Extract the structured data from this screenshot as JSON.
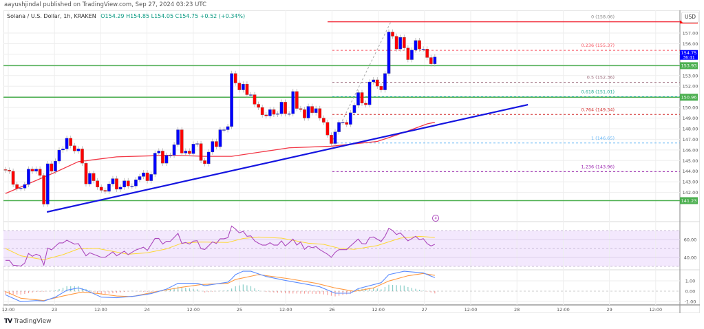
{
  "publish_line": "aayushjindal published on TradingView.com, Sep 27, 2024 03:23 UTC",
  "legend": {
    "symbol": "Solana / U.S. Dollar, 1h, KRAKEN",
    "ohlc": "O154.29 H154.85 L154.05 C154.75 +0.52 (+0.34%)"
  },
  "currency_button": "USD",
  "brand": {
    "logo": "TV",
    "name": "TradingView"
  },
  "colors": {
    "up": "#0000ff",
    "down": "#ff0000",
    "ma": "#f23645",
    "trendline": "#1515e0",
    "support": "#4caf50",
    "rsi": "#ab47bc",
    "rsi_ma": "#fdd835",
    "macd": "#5b8cff",
    "signal": "#ff9940",
    "hist_up": "#26a69a",
    "hist_down": "#ef5350"
  },
  "icons": {
    "event": "lightning-icon"
  },
  "chart_data": [
    {
      "type": "candlestick",
      "title": "Solana / U.S. Dollar, 1h, KRAKEN",
      "ylim": [
        140.5,
        158.9
      ],
      "y_ticks": [
        "157.00",
        "156.00",
        "155.00",
        "154.00",
        "153.00",
        "152.00",
        "151.00",
        "150.00",
        "149.00",
        "148.00",
        "147.00",
        "146.00",
        "145.00",
        "144.00",
        "143.00",
        "142.00"
      ],
      "y_tick_values": [
        157,
        156,
        155,
        154,
        153,
        152,
        151,
        150,
        149,
        148,
        147,
        146,
        145,
        144,
        143,
        142
      ],
      "x_ticks": [
        "12:00",
        "23",
        "12:00",
        "24",
        "12:00",
        "25",
        "12:00",
        "26",
        "12:00",
        "27",
        "12:00",
        "28",
        "12:00",
        "29",
        "12:00"
      ],
      "closes": [
        144.1,
        144.0,
        142.75,
        142.36,
        142.4,
        142.75,
        144.2,
        144.0,
        144.2,
        143.6,
        140.9,
        144.7,
        144.0,
        144.95,
        145.99,
        146.1,
        147.1,
        146.4,
        145.9,
        146.1,
        144.75,
        142.8,
        143.8,
        143.1,
        142.5,
        142.2,
        142.1,
        142.8,
        143.3,
        142.3,
        142.5,
        143.1,
        142.6,
        142.6,
        143.2,
        143.5,
        143.85,
        143.1,
        143.7,
        145.7,
        145.9,
        144.75,
        145.5,
        145.5,
        146.5,
        147.9,
        145.7,
        145.9,
        145.65,
        146.55,
        146.6,
        145.0,
        144.7,
        145.8,
        146.8,
        146.3,
        147.9,
        147.9,
        148.2,
        153.2,
        152.3,
        151.65,
        152.2,
        151.2,
        151.2,
        150.3,
        150.0,
        149.3,
        149.2,
        149.8,
        149.35,
        149.4,
        150.5,
        149.4,
        149.4,
        151.5,
        149.9,
        149.8,
        149.0,
        150.1,
        149.5,
        149.9,
        149.0,
        148.6,
        147.4,
        146.6,
        147.7,
        148.6,
        148.6,
        148.4,
        149.5,
        150.2,
        151.4,
        150.4,
        150.25,
        152.4,
        152.6,
        152.0,
        151.65,
        153.2,
        157.1,
        156.7,
        155.5,
        156.6,
        155.6,
        154.5,
        155.4,
        156.3,
        155.5,
        155.5,
        154.7,
        154.1,
        154.75
      ],
      "moving_average": [
        [
          0,
          141.9
        ],
        [
          13,
          143.9
        ],
        [
          19,
          144.9
        ],
        [
          29,
          145.35
        ],
        [
          43,
          145.5
        ],
        [
          52,
          145.4
        ],
        [
          59,
          145.4
        ],
        [
          74,
          146.2
        ],
        [
          85,
          146.35
        ],
        [
          97,
          146.8
        ],
        [
          102,
          147.4
        ],
        [
          110,
          148.45
        ],
        [
          112,
          148.6
        ]
      ],
      "trendline": [
        [
          10.8,
          140.16
        ],
        [
          136.3,
          150.26
        ]
      ],
      "horizontal_levels": [
        {
          "price": 153.93,
          "label": "153.93"
        },
        {
          "price": 150.96,
          "label": "150.96"
        },
        {
          "price": 141.23,
          "label": "141.23"
        }
      ],
      "last_price": {
        "label": "154.75",
        "countdown": "36:41",
        "value": 154.75
      },
      "fibonacci": {
        "from_index": 85,
        "to_index": 100,
        "levels": [
          {
            "ratio": "0",
            "price": 158.06,
            "label": "0 (158.06)",
            "color": "#f23645",
            "solid": true
          },
          {
            "ratio": "0.236",
            "price": 155.37,
            "label": "0.236 (155.37)",
            "color": "#f7525f"
          },
          {
            "ratio": "0.5",
            "price": 152.36,
            "label": "0.5 (152.36)",
            "color": "#9b6b7b"
          },
          {
            "ratio": "0.618",
            "price": 151.01,
            "label": "0.618 (151.01)",
            "color": "#22ab94"
          },
          {
            "ratio": "0.764",
            "price": 149.34,
            "label": "0.764 (149.34)",
            "color": "#d32f2f"
          },
          {
            "ratio": "1",
            "price": 146.65,
            "label": "1 (146.65)",
            "color": "#64b5f6"
          },
          {
            "ratio": "1.236",
            "price": 143.96,
            "label": "1.236 (143.96)",
            "color": "#9c27b0"
          }
        ]
      }
    },
    {
      "type": "line",
      "title": "RSI",
      "ylim": [
        30,
        70
      ],
      "y_ticks": [
        "60.00",
        "40.00"
      ],
      "y_tick_values": [
        60,
        40
      ],
      "rsi": [
        36.7,
        36.7,
        31.3,
        30.8,
        30.3,
        33.6,
        44.4,
        41.3,
        43.6,
        41.8,
        31.5,
        50.5,
        48.5,
        52.4,
        56.2,
        56.2,
        59.2,
        57,
        54.9,
        55.4,
        48.6,
        41.8,
        45.2,
        43.5,
        41.8,
        40.1,
        40.1,
        43.1,
        46.2,
        41.8,
        44.4,
        47.0,
        43.1,
        45.7,
        48.3,
        49.8,
        51.4,
        47.8,
        54.5,
        61.2,
        61.2,
        54.9,
        58,
        58,
        62.4,
        66.9,
        55.6,
        56.7,
        54.9,
        58.2,
        58.7,
        49.7,
        48.9,
        53.1,
        57.4,
        55.6,
        60.8,
        60.8,
        62.1,
        75.1,
        71.7,
        67.4,
        69.2,
        63.6,
        64.1,
        58.5,
        55.9,
        53.8,
        53.8,
        56.4,
        53.8,
        53.8,
        58.5,
        52.8,
        56.4,
        60.5,
        53.8,
        57.2,
        49.0,
        52.6,
        50.8,
        52.1,
        48.7,
        46.1,
        43.6,
        40.1,
        45.7,
        48.7,
        48.7,
        48.7,
        52.8,
        56.6,
        60.5,
        55.4,
        55.1,
        62.3,
        62.8,
        60.3,
        57.9,
        63.6,
        72.6,
        70.0,
        65.6,
        67.4,
        63,
        58.5,
        61.0,
        63.6,
        59.7,
        61.0,
        55.4,
        52.8,
        54.6
      ],
      "rsi_ma": [
        [
          0,
          50
        ],
        [
          4,
          41.8
        ],
        [
          10,
          37.4
        ],
        [
          15,
          43.1
        ],
        [
          19,
          49.5
        ],
        [
          24,
          50
        ],
        [
          32,
          43.6
        ],
        [
          37,
          45.2
        ],
        [
          42,
          49.5
        ],
        [
          46,
          55.9
        ],
        [
          51,
          57.2
        ],
        [
          58,
          56.7
        ],
        [
          62,
          61.2
        ],
        [
          66,
          62.8
        ],
        [
          72,
          61.5
        ],
        [
          79,
          55.9
        ],
        [
          83,
          54.6
        ],
        [
          87,
          50.3
        ],
        [
          91,
          49
        ],
        [
          97,
          53.3
        ],
        [
          103,
          61.5
        ],
        [
          108,
          63.6
        ],
        [
          112,
          62.3
        ]
      ]
    },
    {
      "type": "line",
      "title": "MACD",
      "y_ticks": [
        "1.00",
        "0.00",
        "-1.00"
      ],
      "y_tick_values": [
        1,
        0,
        -1
      ],
      "macd": [
        [
          0,
          -0.36
        ],
        [
          4,
          -1.02
        ],
        [
          8,
          -0.91
        ],
        [
          10,
          -0.96
        ],
        [
          13,
          -0.58
        ],
        [
          16,
          0.09
        ],
        [
          19,
          0.31
        ],
        [
          21,
          0.09
        ],
        [
          25,
          -0.58
        ],
        [
          29,
          -0.64
        ],
        [
          34,
          -0.47
        ],
        [
          38,
          -0.24
        ],
        [
          42,
          0.2
        ],
        [
          45,
          0.76
        ],
        [
          50,
          0.76
        ],
        [
          52,
          0.53
        ],
        [
          58,
          0.87
        ],
        [
          59,
          1.2
        ],
        [
          60,
          1.6
        ],
        [
          62,
          1.93
        ],
        [
          64,
          1.93
        ],
        [
          68,
          1.42
        ],
        [
          73,
          1.04
        ],
        [
          79,
          0.64
        ],
        [
          82,
          0.42
        ],
        [
          86,
          -0.2
        ],
        [
          90,
          -0.2
        ],
        [
          92,
          0.24
        ],
        [
          98,
          0.82
        ],
        [
          100,
          1.6
        ],
        [
          104,
          1.93
        ],
        [
          109,
          1.76
        ],
        [
          112,
          1.31
        ]
      ],
      "signal": [
        [
          0,
          -0.04
        ],
        [
          4,
          -0.69
        ],
        [
          10,
          -0.91
        ],
        [
          15,
          -0.47
        ],
        [
          20,
          -0.09
        ],
        [
          24,
          -0.22
        ],
        [
          29,
          -0.47
        ],
        [
          33,
          -0.53
        ],
        [
          40,
          0
        ],
        [
          46,
          0.38
        ],
        [
          51,
          0.64
        ],
        [
          58,
          0.76
        ],
        [
          60,
          1.13
        ],
        [
          66,
          1.6
        ],
        [
          74,
          1.2
        ],
        [
          81,
          0.76
        ],
        [
          86,
          0.31
        ],
        [
          91,
          -0.02
        ],
        [
          96,
          0.31
        ],
        [
          100,
          0.98
        ],
        [
          105,
          1.49
        ],
        [
          109,
          1.71
        ],
        [
          112,
          1.53
        ]
      ]
    }
  ]
}
